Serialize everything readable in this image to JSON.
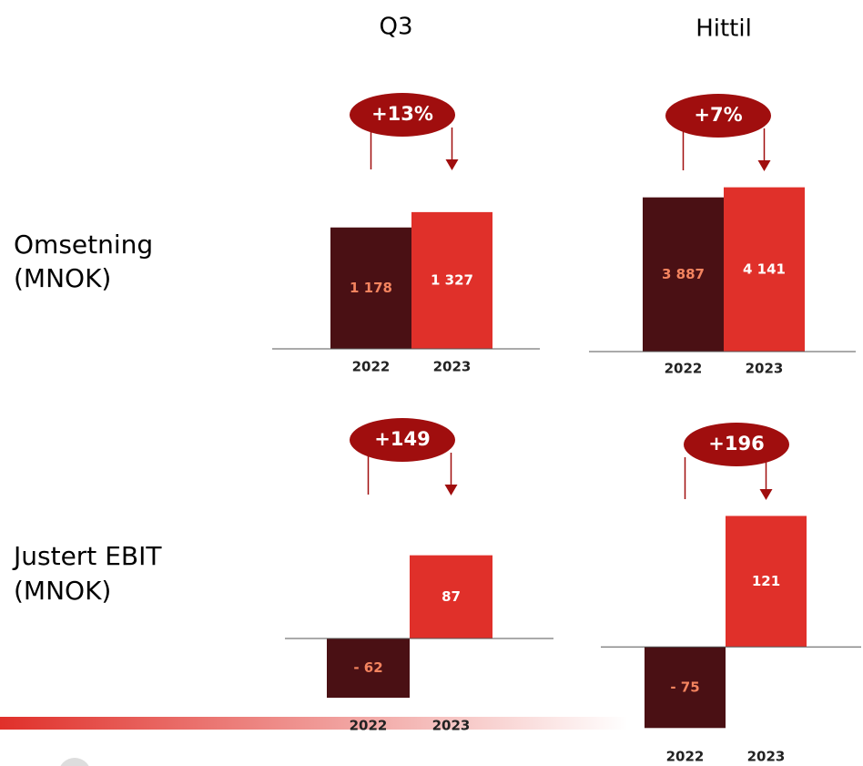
{
  "columns": [
    "Q3",
    "Hittil"
  ],
  "rows": [
    {
      "title": "Omsetning",
      "unit": "(MNOK)"
    },
    {
      "title": "Justert EBIT",
      "unit": "(MNOK)"
    }
  ],
  "chart_data": [
    {
      "type": "bar",
      "categories": [
        "2022",
        "2023"
      ],
      "values": [
        1178,
        1327
      ],
      "value_labels": [
        "1 178",
        "1 327"
      ],
      "colors": [
        "#4a1014",
        "#e0302a"
      ],
      "label_colors": [
        "#f4845f",
        "#ffffff"
      ],
      "ylim": [
        0,
        1600
      ],
      "annotation": "+13%"
    },
    {
      "type": "bar",
      "categories": [
        "2022",
        "2023"
      ],
      "values": [
        3887,
        4141
      ],
      "value_labels": [
        "3 887",
        "4 141"
      ],
      "colors": [
        "#4a1014",
        "#e0302a"
      ],
      "label_colors": [
        "#f4845f",
        "#ffffff"
      ],
      "ylim": [
        0,
        4500
      ],
      "annotation": "+7%"
    },
    {
      "type": "bar",
      "categories": [
        "2022",
        "2023"
      ],
      "values": [
        -62,
        87
      ],
      "value_labels": [
        "-  62",
        "87"
      ],
      "colors": [
        "#4a1014",
        "#e0302a"
      ],
      "label_colors": [
        "#f4845f",
        "#ffffff"
      ],
      "ylim": [
        -80,
        120
      ],
      "annotation": "+149"
    },
    {
      "type": "bar",
      "categories": [
        "2022",
        "2023"
      ],
      "values": [
        -75,
        121
      ],
      "value_labels": [
        "-  75",
        "121"
      ],
      "colors": [
        "#4a1014",
        "#e0302a"
      ],
      "label_colors": [
        "#f4845f",
        "#ffffff"
      ],
      "ylim": [
        -100,
        150
      ],
      "annotation": "+196"
    }
  ]
}
